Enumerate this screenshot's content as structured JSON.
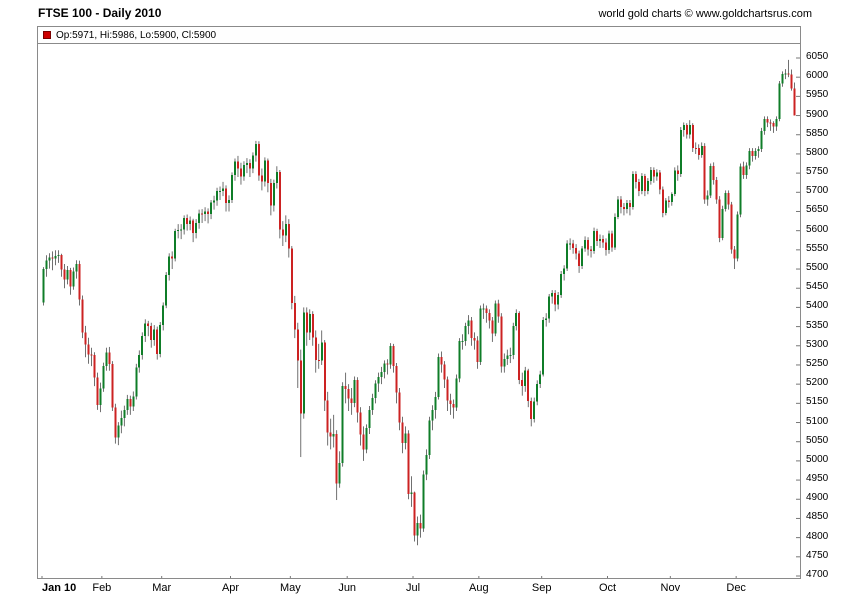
{
  "header": {
    "title": "FTSE 100 - Daily 2010",
    "attribution": "world gold charts © www.goldchartsrus.com"
  },
  "legend": {
    "marker_color": "#cc0000",
    "text": "Op:5971, Hi:5986, Lo:5900, Cl:5900"
  },
  "chart_data": {
    "type": "candlestick",
    "title": "FTSE 100 - Daily 2010",
    "grid": false,
    "legend_position": "top",
    "y_axis": {
      "min": 4700,
      "max": 6050,
      "step": 50,
      "side": "right"
    },
    "ylim": [
      4700,
      6050
    ],
    "colors": {
      "up": "#0f7d28",
      "down": "#cc2222",
      "wick": "#333333"
    },
    "last_bar": {
      "open": 5971,
      "high": 5986,
      "low": 5900,
      "close": 5900
    },
    "x_axis": {
      "months": [
        {
          "label": "Jan 10",
          "day": 0
        },
        {
          "label": "Feb",
          "day": 20
        },
        {
          "label": "Mar",
          "day": 40
        },
        {
          "label": "Apr",
          "day": 63
        },
        {
          "label": "May",
          "day": 83
        },
        {
          "label": "Jun",
          "day": 102
        },
        {
          "label": "Jul",
          "day": 124
        },
        {
          "label": "Aug",
          "day": 146
        },
        {
          "label": "Sep",
          "day": 167
        },
        {
          "label": "Oct",
          "day": 189
        },
        {
          "label": "Nov",
          "day": 210
        },
        {
          "label": "Dec",
          "day": 232
        }
      ]
    },
    "candles": [
      [
        5413,
        5505,
        5405,
        5500
      ],
      [
        5500,
        5536,
        5480,
        5522
      ],
      [
        5522,
        5541,
        5501,
        5530
      ],
      [
        5530,
        5546,
        5497,
        5527
      ],
      [
        5527,
        5549,
        5510,
        5534
      ],
      [
        5534,
        5549,
        5516,
        5536
      ],
      [
        5536,
        5540,
        5480,
        5499
      ],
      [
        5499,
        5513,
        5450,
        5473
      ],
      [
        5473,
        5508,
        5460,
        5498
      ],
      [
        5498,
        5503,
        5433,
        5455
      ],
      [
        5455,
        5504,
        5446,
        5494
      ],
      [
        5494,
        5523,
        5475,
        5513
      ],
      [
        5513,
        5522,
        5405,
        5420
      ],
      [
        5420,
        5431,
        5320,
        5335
      ],
      [
        5335,
        5352,
        5270,
        5303
      ],
      [
        5303,
        5321,
        5253,
        5277
      ],
      [
        5277,
        5295,
        5247,
        5276
      ],
      [
        5276,
        5283,
        5195,
        5217
      ],
      [
        5217,
        5230,
        5133,
        5146
      ],
      [
        5146,
        5204,
        5127,
        5189
      ],
      [
        5189,
        5256,
        5180,
        5247
      ],
      [
        5247,
        5295,
        5235,
        5283
      ],
      [
        5283,
        5297,
        5235,
        5253
      ],
      [
        5253,
        5260,
        5130,
        5139
      ],
      [
        5139,
        5149,
        5045,
        5061
      ],
      [
        5061,
        5101,
        5041,
        5092
      ],
      [
        5092,
        5131,
        5072,
        5112
      ],
      [
        5112,
        5144,
        5090,
        5132
      ],
      [
        5132,
        5172,
        5120,
        5161
      ],
      [
        5161,
        5170,
        5120,
        5142
      ],
      [
        5142,
        5181,
        5130,
        5168
      ],
      [
        5168,
        5253,
        5160,
        5244
      ],
      [
        5244,
        5288,
        5230,
        5276
      ],
      [
        5276,
        5335,
        5264,
        5326
      ],
      [
        5326,
        5369,
        5310,
        5358
      ],
      [
        5358,
        5365,
        5325,
        5352
      ],
      [
        5352,
        5360,
        5295,
        5315
      ],
      [
        5315,
        5354,
        5300,
        5343
      ],
      [
        5343,
        5350,
        5264,
        5278
      ],
      [
        5278,
        5362,
        5270,
        5354
      ],
      [
        5354,
        5413,
        5340,
        5405
      ],
      [
        5405,
        5492,
        5398,
        5484
      ],
      [
        5484,
        5541,
        5470,
        5533
      ],
      [
        5533,
        5546,
        5500,
        5527
      ],
      [
        5527,
        5605,
        5520,
        5599
      ],
      [
        5599,
        5617,
        5580,
        5602
      ],
      [
        5602,
        5617,
        5578,
        5603
      ],
      [
        5603,
        5640,
        5590,
        5633
      ],
      [
        5633,
        5642,
        5600,
        5618
      ],
      [
        5618,
        5637,
        5601,
        5626
      ],
      [
        5626,
        5631,
        5570,
        5594
      ],
      [
        5594,
        5630,
        5580,
        5620
      ],
      [
        5620,
        5655,
        5605,
        5645
      ],
      [
        5645,
        5656,
        5620,
        5643
      ],
      [
        5643,
        5661,
        5625,
        5650
      ],
      [
        5650,
        5658,
        5619,
        5644
      ],
      [
        5644,
        5680,
        5630,
        5673
      ],
      [
        5673,
        5691,
        5655,
        5678
      ],
      [
        5678,
        5712,
        5665,
        5703
      ],
      [
        5703,
        5715,
        5680,
        5703
      ],
      [
        5703,
        5727,
        5690,
        5710
      ],
      [
        5710,
        5718,
        5650,
        5672
      ],
      [
        5672,
        5692,
        5650,
        5680
      ],
      [
        5680,
        5752,
        5672,
        5745
      ],
      [
        5745,
        5788,
        5730,
        5780
      ],
      [
        5780,
        5795,
        5740,
        5762
      ],
      [
        5762,
        5777,
        5720,
        5741
      ],
      [
        5741,
        5781,
        5730,
        5771
      ],
      [
        5771,
        5789,
        5750,
        5777
      ],
      [
        5777,
        5786,
        5740,
        5762
      ],
      [
        5762,
        5804,
        5750,
        5796
      ],
      [
        5796,
        5834,
        5780,
        5826
      ],
      [
        5826,
        5833,
        5730,
        5744
      ],
      [
        5744,
        5762,
        5705,
        5728
      ],
      [
        5728,
        5791,
        5715,
        5783
      ],
      [
        5783,
        5788,
        5700,
        5724
      ],
      [
        5724,
        5735,
        5640,
        5665
      ],
      [
        5665,
        5733,
        5650,
        5724
      ],
      [
        5724,
        5768,
        5710,
        5753
      ],
      [
        5753,
        5758,
        5580,
        5603
      ],
      [
        5603,
        5625,
        5560,
        5587
      ],
      [
        5587,
        5640,
        5570,
        5618
      ],
      [
        5618,
        5630,
        5530,
        5553
      ],
      [
        5553,
        5560,
        5395,
        5411
      ],
      [
        5411,
        5430,
        5320,
        5342
      ],
      [
        5342,
        5360,
        5190,
        5261
      ],
      [
        5261,
        5290,
        5010,
        5123
      ],
      [
        5123,
        5400,
        5110,
        5387
      ],
      [
        5387,
        5400,
        5300,
        5334
      ],
      [
        5334,
        5395,
        5315,
        5383
      ],
      [
        5383,
        5390,
        5300,
        5321
      ],
      [
        5321,
        5340,
        5230,
        5263
      ],
      [
        5263,
        5305,
        5240,
        5262
      ],
      [
        5262,
        5340,
        5250,
        5308
      ],
      [
        5308,
        5315,
        5130,
        5158
      ],
      [
        5158,
        5180,
        5040,
        5074
      ],
      [
        5074,
        5110,
        5030,
        5063
      ],
      [
        5063,
        5120,
        5035,
        5070
      ],
      [
        5070,
        5080,
        4898,
        4941
      ],
      [
        4941,
        5025,
        4930,
        4995
      ],
      [
        4995,
        5205,
        4985,
        5195
      ],
      [
        5195,
        5230,
        5150,
        5188
      ],
      [
        5188,
        5200,
        5130,
        5163
      ],
      [
        5163,
        5190,
        5120,
        5151
      ],
      [
        5151,
        5220,
        5140,
        5211
      ],
      [
        5211,
        5218,
        5100,
        5126
      ],
      [
        5126,
        5140,
        5040,
        5069
      ],
      [
        5069,
        5090,
        5000,
        5030
      ],
      [
        5030,
        5095,
        5020,
        5086
      ],
      [
        5086,
        5143,
        5070,
        5133
      ],
      [
        5133,
        5175,
        5120,
        5164
      ],
      [
        5164,
        5210,
        5150,
        5202
      ],
      [
        5202,
        5230,
        5180,
        5218
      ],
      [
        5218,
        5245,
        5200,
        5232
      ],
      [
        5232,
        5262,
        5215,
        5254
      ],
      [
        5254,
        5265,
        5225,
        5251
      ],
      [
        5251,
        5307,
        5240,
        5299
      ],
      [
        5299,
        5305,
        5230,
        5247
      ],
      [
        5247,
        5255,
        5150,
        5178
      ],
      [
        5178,
        5190,
        5080,
        5100
      ],
      [
        5100,
        5115,
        5020,
        5047
      ],
      [
        5047,
        5090,
        5030,
        5071
      ],
      [
        5071,
        5080,
        4900,
        4914
      ],
      [
        4914,
        4960,
        4880,
        4917
      ],
      [
        4917,
        4920,
        4790,
        4806
      ],
      [
        4806,
        4855,
        4780,
        4838
      ],
      [
        4838,
        4860,
        4800,
        4824
      ],
      [
        4824,
        4975,
        4815,
        4965
      ],
      [
        4965,
        5030,
        4950,
        5015
      ],
      [
        5015,
        5115,
        5005,
        5105
      ],
      [
        5105,
        5145,
        5080,
        5133
      ],
      [
        5133,
        5180,
        5110,
        5167
      ],
      [
        5167,
        5280,
        5160,
        5271
      ],
      [
        5271,
        5285,
        5230,
        5251
      ],
      [
        5251,
        5260,
        5190,
        5212
      ],
      [
        5212,
        5220,
        5130,
        5158
      ],
      [
        5158,
        5175,
        5120,
        5148
      ],
      [
        5148,
        5160,
        5110,
        5139
      ],
      [
        5139,
        5225,
        5130,
        5215
      ],
      [
        5215,
        5320,
        5205,
        5313
      ],
      [
        5313,
        5330,
        5290,
        5313
      ],
      [
        5313,
        5360,
        5300,
        5351
      ],
      [
        5351,
        5380,
        5330,
        5366
      ],
      [
        5366,
        5375,
        5300,
        5320
      ],
      [
        5320,
        5335,
        5290,
        5314
      ],
      [
        5314,
        5325,
        5240,
        5258
      ],
      [
        5258,
        5405,
        5250,
        5397
      ],
      [
        5397,
        5410,
        5370,
        5397
      ],
      [
        5397,
        5405,
        5360,
        5386
      ],
      [
        5386,
        5395,
        5345,
        5366
      ],
      [
        5366,
        5375,
        5310,
        5332
      ],
      [
        5332,
        5418,
        5325,
        5410
      ],
      [
        5410,
        5420,
        5360,
        5376
      ],
      [
        5376,
        5385,
        5230,
        5246
      ],
      [
        5246,
        5280,
        5230,
        5266
      ],
      [
        5266,
        5290,
        5250,
        5275
      ],
      [
        5275,
        5295,
        5255,
        5276
      ],
      [
        5276,
        5360,
        5265,
        5351
      ],
      [
        5351,
        5395,
        5340,
        5386
      ],
      [
        5386,
        5390,
        5200,
        5211
      ],
      [
        5211,
        5230,
        5170,
        5195
      ],
      [
        5195,
        5245,
        5180,
        5235
      ],
      [
        5235,
        5240,
        5140,
        5156
      ],
      [
        5156,
        5165,
        5090,
        5109
      ],
      [
        5109,
        5165,
        5100,
        5155
      ],
      [
        5155,
        5210,
        5145,
        5201
      ],
      [
        5201,
        5235,
        5190,
        5225
      ],
      [
        5225,
        5375,
        5220,
        5367
      ],
      [
        5367,
        5385,
        5350,
        5371
      ],
      [
        5371,
        5435,
        5360,
        5428
      ],
      [
        5428,
        5445,
        5410,
        5437
      ],
      [
        5437,
        5445,
        5390,
        5407
      ],
      [
        5407,
        5440,
        5395,
        5432
      ],
      [
        5432,
        5495,
        5425,
        5487
      ],
      [
        5487,
        5510,
        5470,
        5501
      ],
      [
        5501,
        5575,
        5495,
        5567
      ],
      [
        5567,
        5580,
        5550,
        5567
      ],
      [
        5567,
        5576,
        5540,
        5555
      ],
      [
        5555,
        5565,
        5525,
        5540
      ],
      [
        5540,
        5548,
        5490,
        5508
      ],
      [
        5508,
        5560,
        5500,
        5553
      ],
      [
        5553,
        5585,
        5545,
        5576
      ],
      [
        5576,
        5583,
        5535,
        5551
      ],
      [
        5551,
        5560,
        5530,
        5547
      ],
      [
        5547,
        5608,
        5540,
        5599
      ],
      [
        5599,
        5605,
        5560,
        5573
      ],
      [
        5573,
        5590,
        5555,
        5578
      ],
      [
        5578,
        5588,
        5555,
        5569
      ],
      [
        5569,
        5580,
        5535,
        5549
      ],
      [
        5549,
        5600,
        5540,
        5593
      ],
      [
        5593,
        5600,
        5545,
        5556
      ],
      [
        5556,
        5645,
        5550,
        5636
      ],
      [
        5636,
        5690,
        5630,
        5681
      ],
      [
        5681,
        5690,
        5645,
        5662
      ],
      [
        5662,
        5672,
        5640,
        5657
      ],
      [
        5657,
        5680,
        5645,
        5672
      ],
      [
        5672,
        5680,
        5640,
        5662
      ],
      [
        5662,
        5755,
        5655,
        5748
      ],
      [
        5748,
        5755,
        5710,
        5727
      ],
      [
        5727,
        5735,
        5690,
        5703
      ],
      [
        5703,
        5750,
        5695,
        5742
      ],
      [
        5742,
        5748,
        5690,
        5704
      ],
      [
        5704,
        5737,
        5695,
        5729
      ],
      [
        5729,
        5766,
        5720,
        5758
      ],
      [
        5758,
        5765,
        5725,
        5741
      ],
      [
        5741,
        5760,
        5730,
        5751
      ],
      [
        5751,
        5758,
        5695,
        5707
      ],
      [
        5707,
        5715,
        5635,
        5646
      ],
      [
        5646,
        5685,
        5640,
        5678
      ],
      [
        5678,
        5690,
        5660,
        5675
      ],
      [
        5675,
        5700,
        5665,
        5695
      ],
      [
        5695,
        5765,
        5690,
        5757
      ],
      [
        5757,
        5770,
        5730,
        5748
      ],
      [
        5748,
        5870,
        5740,
        5862
      ],
      [
        5862,
        5882,
        5845,
        5875
      ],
      [
        5875,
        5880,
        5840,
        5850
      ],
      [
        5850,
        5888,
        5840,
        5875
      ],
      [
        5875,
        5880,
        5805,
        5816
      ],
      [
        5816,
        5830,
        5800,
        5815
      ],
      [
        5815,
        5825,
        5785,
        5797
      ],
      [
        5797,
        5830,
        5790,
        5821
      ],
      [
        5821,
        5828,
        5670,
        5681
      ],
      [
        5681,
        5705,
        5665,
        5692
      ],
      [
        5692,
        5775,
        5685,
        5769
      ],
      [
        5769,
        5778,
        5720,
        5732
      ],
      [
        5732,
        5740,
        5670,
        5681
      ],
      [
        5681,
        5690,
        5570,
        5581
      ],
      [
        5581,
        5665,
        5575,
        5657
      ],
      [
        5657,
        5705,
        5650,
        5698
      ],
      [
        5698,
        5705,
        5655,
        5668
      ],
      [
        5668,
        5675,
        5540,
        5551
      ],
      [
        5551,
        5560,
        5500,
        5528
      ],
      [
        5528,
        5650,
        5520,
        5642
      ],
      [
        5642,
        5775,
        5635,
        5767
      ],
      [
        5767,
        5780,
        5735,
        5745
      ],
      [
        5745,
        5778,
        5735,
        5770
      ],
      [
        5770,
        5815,
        5760,
        5808
      ],
      [
        5808,
        5815,
        5780,
        5794
      ],
      [
        5794,
        5815,
        5785,
        5807
      ],
      [
        5807,
        5820,
        5790,
        5813
      ],
      [
        5813,
        5868,
        5805,
        5860
      ],
      [
        5860,
        5898,
        5850,
        5891
      ],
      [
        5891,
        5898,
        5870,
        5882
      ],
      [
        5882,
        5890,
        5860,
        5881
      ],
      [
        5881,
        5885,
        5855,
        5872
      ],
      [
        5872,
        5898,
        5860,
        5891
      ],
      [
        5891,
        5990,
        5885,
        5983
      ],
      [
        5983,
        6015,
        5975,
        6008
      ],
      [
        6008,
        6021,
        5995,
        6009
      ],
      [
        6009,
        6045,
        6000,
        6007
      ],
      [
        6007,
        6020,
        5965,
        5971
      ],
      [
        5971,
        5986,
        5900,
        5900
      ]
    ]
  }
}
